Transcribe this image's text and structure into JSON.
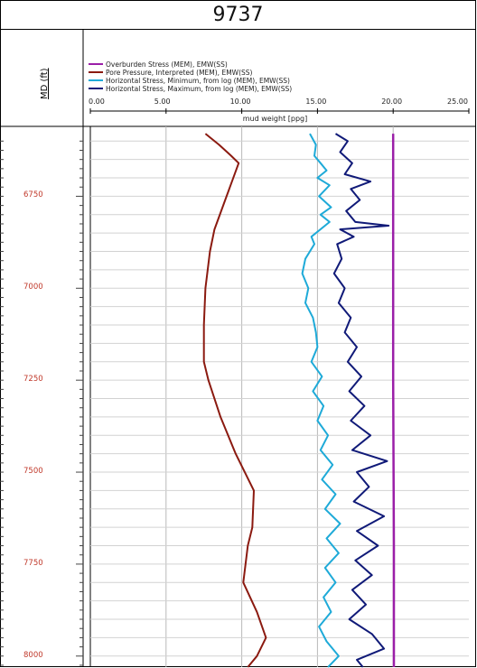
{
  "chart_data": {
    "type": "line",
    "title": "9737",
    "ylabel": "MD (ft)",
    "xlabel": "mud weight [ppg]",
    "xlim": [
      0,
      25
    ],
    "x_ticks": [
      "0.00",
      "5.00",
      "10.00",
      "15.00",
      "20.00",
      "25.00"
    ],
    "ylim": [
      6560,
      8030
    ],
    "y_ticks": [
      "6750",
      "7000",
      "7250",
      "7500",
      "7750",
      "8000"
    ],
    "grid": true,
    "legend": "top",
    "series": [
      {
        "name": "Overburden Stress (MEM), EMW(SS)",
        "color": "#9b1fa8",
        "points": [
          [
            20.0,
            6580
          ],
          [
            20.0,
            7250
          ],
          [
            20.05,
            7700
          ],
          [
            20.05,
            8030
          ]
        ]
      },
      {
        "name": "Pore Pressure, Interpreted (MEM), EMW(SS)",
        "color": "#8b1a10",
        "points": [
          [
            7.6,
            6580
          ],
          [
            8.5,
            6610
          ],
          [
            9.3,
            6640
          ],
          [
            9.8,
            6660
          ],
          [
            9.0,
            6750
          ],
          [
            8.2,
            6840
          ],
          [
            7.9,
            6900
          ],
          [
            7.6,
            7000
          ],
          [
            7.5,
            7100
          ],
          [
            7.5,
            7200
          ],
          [
            7.8,
            7250
          ],
          [
            8.6,
            7350
          ],
          [
            9.6,
            7450
          ],
          [
            10.8,
            7550
          ],
          [
            10.7,
            7650
          ],
          [
            10.4,
            7700
          ],
          [
            10.1,
            7800
          ],
          [
            11.0,
            7880
          ],
          [
            11.6,
            7950
          ],
          [
            11.0,
            8000
          ],
          [
            10.4,
            8030
          ]
        ]
      },
      {
        "name": "Horizontal Stress, Minimum, from log (MEM), EMW(SS)",
        "color": "#1eaad8",
        "points": [
          [
            14.5,
            6580
          ],
          [
            14.9,
            6610
          ],
          [
            14.8,
            6640
          ],
          [
            15.2,
            6660
          ],
          [
            15.6,
            6680
          ],
          [
            15.0,
            6700
          ],
          [
            15.8,
            6720
          ],
          [
            15.1,
            6750
          ],
          [
            15.9,
            6780
          ],
          [
            15.2,
            6800
          ],
          [
            15.8,
            6820
          ],
          [
            14.6,
            6860
          ],
          [
            14.8,
            6880
          ],
          [
            14.2,
            6920
          ],
          [
            14.0,
            6960
          ],
          [
            14.4,
            7000
          ],
          [
            14.2,
            7040
          ],
          [
            14.7,
            7080
          ],
          [
            14.9,
            7120
          ],
          [
            15.0,
            7160
          ],
          [
            14.6,
            7200
          ],
          [
            15.3,
            7240
          ],
          [
            14.7,
            7280
          ],
          [
            15.4,
            7320
          ],
          [
            15.0,
            7360
          ],
          [
            15.7,
            7400
          ],
          [
            15.2,
            7440
          ],
          [
            16.0,
            7480
          ],
          [
            15.3,
            7520
          ],
          [
            16.2,
            7560
          ],
          [
            15.5,
            7600
          ],
          [
            16.5,
            7640
          ],
          [
            15.6,
            7680
          ],
          [
            16.4,
            7720
          ],
          [
            15.5,
            7760
          ],
          [
            16.2,
            7800
          ],
          [
            15.4,
            7840
          ],
          [
            15.9,
            7880
          ],
          [
            15.1,
            7920
          ],
          [
            15.6,
            7960
          ],
          [
            16.4,
            8000
          ],
          [
            15.7,
            8030
          ]
        ]
      },
      {
        "name": "Horizontal Stress, Maximum, from log (MEM), EMW(SS)",
        "color": "#101a78",
        "points": [
          [
            16.2,
            6580
          ],
          [
            17.0,
            6600
          ],
          [
            16.5,
            6630
          ],
          [
            17.3,
            6660
          ],
          [
            16.8,
            6690
          ],
          [
            18.5,
            6710
          ],
          [
            17.2,
            6730
          ],
          [
            17.8,
            6760
          ],
          [
            16.9,
            6790
          ],
          [
            17.5,
            6820
          ],
          [
            19.7,
            6830
          ],
          [
            16.5,
            6840
          ],
          [
            17.4,
            6860
          ],
          [
            16.3,
            6880
          ],
          [
            16.6,
            6920
          ],
          [
            16.1,
            6960
          ],
          [
            16.8,
            7000
          ],
          [
            16.4,
            7040
          ],
          [
            17.2,
            7080
          ],
          [
            16.8,
            7120
          ],
          [
            17.6,
            7160
          ],
          [
            17.0,
            7200
          ],
          [
            17.9,
            7240
          ],
          [
            17.1,
            7280
          ],
          [
            18.1,
            7320
          ],
          [
            17.2,
            7360
          ],
          [
            18.5,
            7400
          ],
          [
            17.3,
            7440
          ],
          [
            19.6,
            7470
          ],
          [
            17.6,
            7500
          ],
          [
            18.4,
            7540
          ],
          [
            17.4,
            7580
          ],
          [
            19.4,
            7620
          ],
          [
            17.6,
            7660
          ],
          [
            19.0,
            7700
          ],
          [
            17.5,
            7740
          ],
          [
            18.6,
            7780
          ],
          [
            17.3,
            7820
          ],
          [
            18.2,
            7860
          ],
          [
            17.1,
            7900
          ],
          [
            18.6,
            7940
          ],
          [
            19.4,
            7980
          ],
          [
            17.6,
            8010
          ],
          [
            18.0,
            8030
          ]
        ]
      }
    ]
  }
}
